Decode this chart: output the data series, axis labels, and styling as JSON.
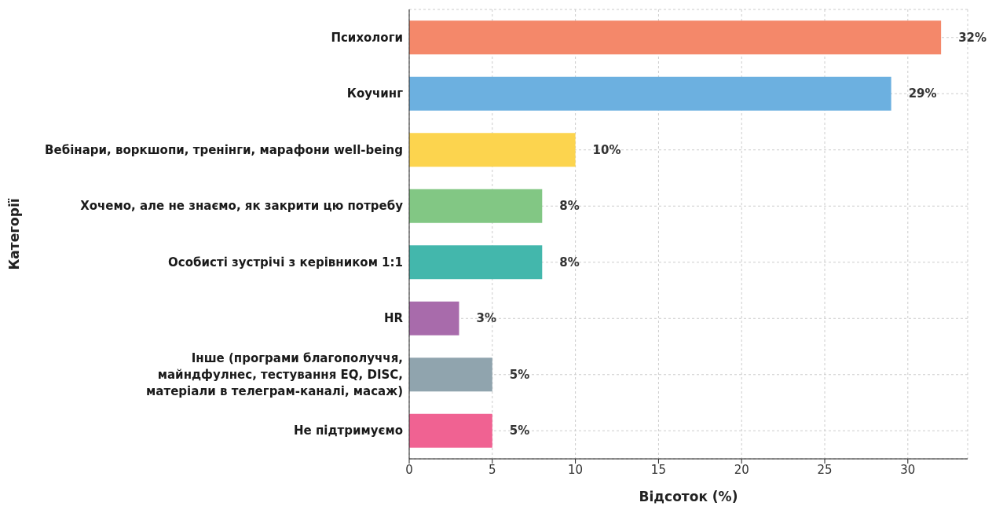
{
  "chart_data": {
    "type": "bar",
    "orientation": "horizontal",
    "xlabel": "Відсоток (%)",
    "ylabel": "Категорії",
    "categories": [
      "Психологи",
      "Коучинг",
      "Вебінари, воркшопи, тренінги, марафони well-being",
      "Хочемо, але не знаємо, як закрити цю потребу",
      "Особисті зустрічі з керівником 1:1",
      "HR",
      "Інше (програми благополуччя,\nмайндфулнес, тестування EQ, DISC,\nматеріали в телеграм-каналі, масаж)",
      "Не підтримуємо"
    ],
    "values": [
      32,
      29,
      10,
      8,
      8,
      3,
      5,
      5
    ],
    "value_labels": [
      "32%",
      "29%",
      "10%",
      "8%",
      "8%",
      "3%",
      "5%",
      "5%"
    ],
    "colors": [
      "#f4886a",
      "#6cb0e0",
      "#fcd44e",
      "#82c784",
      "#43b7ac",
      "#a86bab",
      "#90a4ae",
      "#f06292"
    ],
    "xlim": [
      0,
      33.6
    ],
    "xticks": [
      0,
      5,
      10,
      15,
      20,
      25,
      30
    ],
    "grid": true
  }
}
